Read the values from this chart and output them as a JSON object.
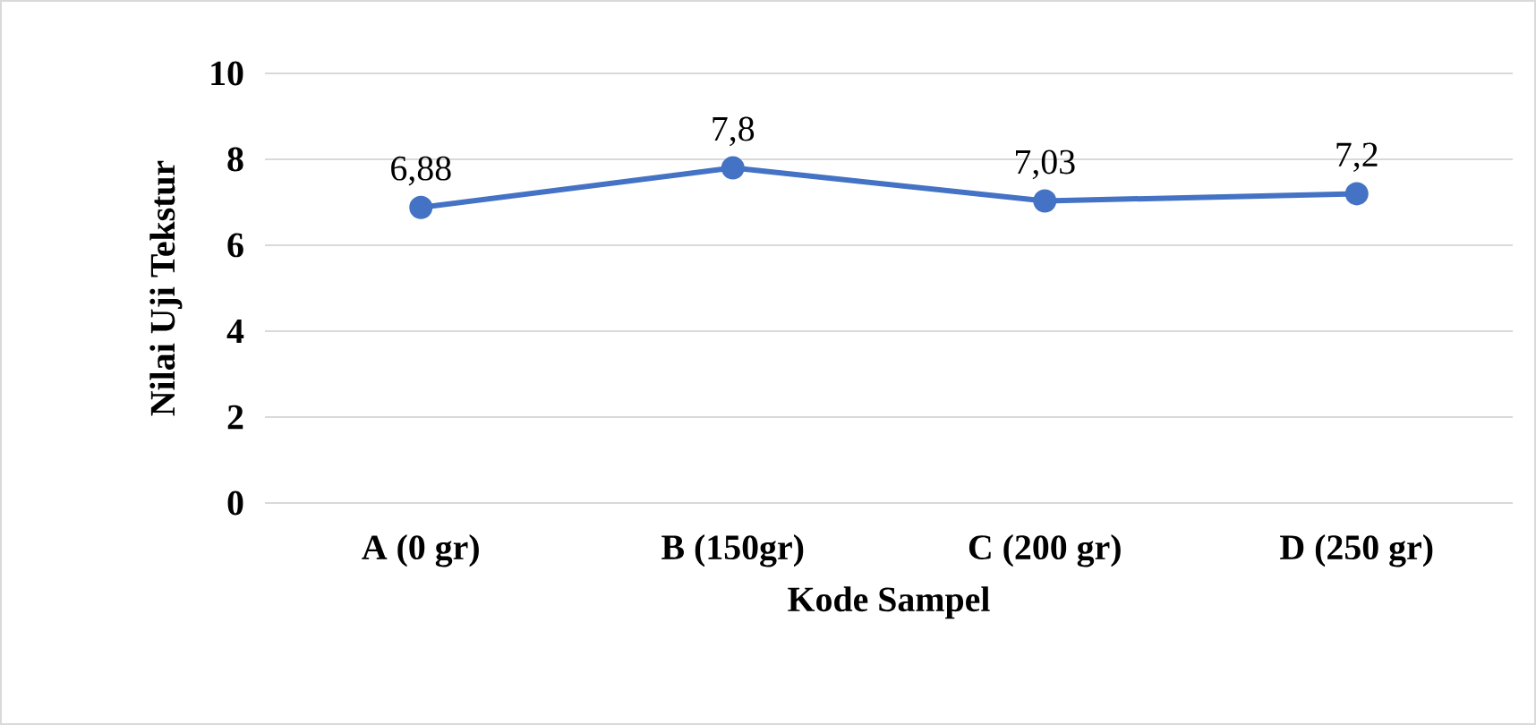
{
  "chart_data": {
    "type": "line",
    "xlabel": "Kode Sampel",
    "ylabel": "Nilai Uji Tekstur",
    "categories": [
      "A (0 gr)",
      "B (150gr)",
      "C (200 gr)",
      "D (250 gr)"
    ],
    "series": [
      {
        "color": "#4472c4",
        "values": [
          6.88,
          7.8,
          7.03,
          7.2
        ],
        "value_labels": [
          "6,88",
          "7,8",
          "7,03",
          "7,2"
        ]
      }
    ],
    "ylim": [
      0,
      10
    ],
    "yticks": [
      0,
      2,
      4,
      6,
      8,
      10
    ],
    "grid": "y",
    "marker": "circle",
    "line_style": "solid"
  }
}
